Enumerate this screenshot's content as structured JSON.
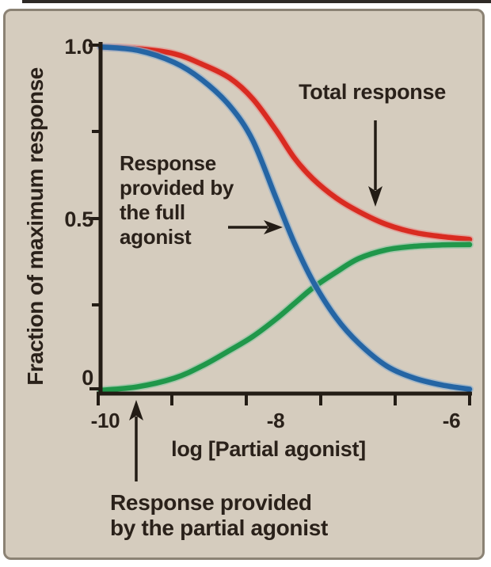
{
  "figure": {
    "panel_background": "#d5ccbe",
    "panel_border_color": "#8b8274",
    "text_color": "#2a211a",
    "axis_color": "#231c15"
  },
  "chart_data": {
    "type": "line",
    "title": "",
    "xlabel": "log [Partial agonist]",
    "ylabel": "Fraction of maximum response",
    "xlim": [
      -10,
      -6
    ],
    "ylim": [
      0,
      1.0
    ],
    "grid": "off",
    "legend": "none (labels annotated with arrows)",
    "x_tick_labels": [
      "-10",
      "-8",
      "-6"
    ],
    "y_tick_labels": [
      "1.0",
      "0.5",
      "0"
    ],
    "x": [
      -10,
      -9.6,
      -9.2,
      -8.9,
      -8.6,
      -8.35,
      -8.1,
      -7.9,
      -7.7,
      -7.45,
      -7.2,
      -6.9,
      -6.6,
      -6.3,
      -6.0
    ],
    "series": [
      {
        "name": "Total response",
        "color": "#d92b21",
        "values": [
          0.995,
          0.99,
          0.975,
          0.945,
          0.905,
          0.845,
          0.755,
          0.675,
          0.615,
          0.56,
          0.52,
          0.483,
          0.46,
          0.448,
          0.44
        ]
      },
      {
        "name": "Response provided by the full agonist",
        "color": "#2565a4",
        "values": [
          0.995,
          0.985,
          0.95,
          0.9,
          0.825,
          0.725,
          0.56,
          0.43,
          0.32,
          0.215,
          0.14,
          0.075,
          0.04,
          0.02,
          0.008
        ]
      },
      {
        "name": "Response provided by the partial agonist",
        "color": "#20974a",
        "values": [
          0.005,
          0.015,
          0.04,
          0.075,
          0.12,
          0.16,
          0.21,
          0.255,
          0.3,
          0.345,
          0.385,
          0.41,
          0.42,
          0.424,
          0.425
        ]
      }
    ]
  },
  "annotations": {
    "total_response_label": "Total response",
    "full_agonist_label": "Response\nprovided by\nthe full\nagonist",
    "partial_agonist_label": "Response provided\nby the partial agonist",
    "x_axis_label": "log [Partial agonist]",
    "y_axis_label": "Fraction of maximum response",
    "y_ticks": {
      "v1": "1.0",
      "v05": "0.5",
      "v0": "0"
    },
    "x_ticks": {
      "m10": "-10",
      "m8": "-8",
      "m6": "-6"
    }
  }
}
